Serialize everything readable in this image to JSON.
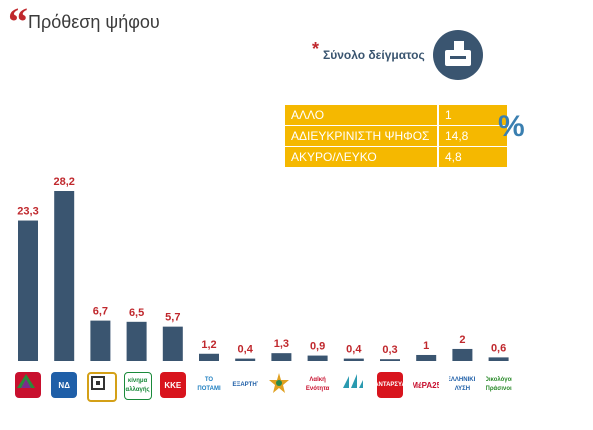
{
  "header": {
    "quote": "“",
    "title": "Πρόθεση ψήφου"
  },
  "sample": {
    "asterisk": "*",
    "label": "Σύνολο δείγματος",
    "icon": "ballot-box-icon"
  },
  "other_table": {
    "rows": [
      {
        "label": "ΑΛΛΟ",
        "value": "1"
      },
      {
        "label": "ΑΔΙΕΥΚΡΙΝΙΣΤΗ ΨΗΦΟΣ",
        "value": "14,8"
      },
      {
        "label": "ΑΚΥΡΟ/ΛΕΥΚΟ",
        "value": "4,8"
      }
    ],
    "unit": "%",
    "color": "#f5b800"
  },
  "chart_data": {
    "type": "bar",
    "categories": [
      "ΣΥΡΙΖΑ",
      "ΝΔ",
      "Χρυσή Αυγή",
      "Κίνημα Αλλαγής",
      "ΚΚΕ",
      "Το Ποτάμι",
      "Ανεξάρτητοι Έλληνες",
      "Ένωση Κεντρώων",
      "Λαϊκή Ενότητα",
      "Πλεύση Ελευθερίας",
      "ΑΝΤΑΡΣΥΑ",
      "ΜέΡΑ25",
      "Ελληνική Λύση",
      "Οικολόγοι Πράσινοι"
    ],
    "values": [
      23.3,
      28.2,
      6.7,
      6.5,
      5.7,
      1.2,
      0.4,
      1.3,
      0.9,
      0.4,
      0.3,
      1,
      2,
      0.6
    ],
    "labels": [
      "23,3",
      "28,2",
      "6,7",
      "6,5",
      "5,7",
      "1,2",
      "0,4",
      "1,3",
      "0,9",
      "0,4",
      "0,3",
      "1",
      "2",
      "0,6"
    ],
    "ylim": [
      0,
      30
    ],
    "grid": false,
    "bar_color": "#3a5570",
    "label_color": "#c0282d",
    "logo_texts": [
      "",
      "ΝΔ",
      "",
      "κίνημα αλλαγής",
      "ΚΚΕ",
      "ΤΟ ΠΟΤΑΜΙ",
      "ΑΝΕΞΑΡΤΗΤΟΙ",
      "",
      "Λαϊκή Ενότητα",
      "",
      "ΑΝΤΑΡΣΥΑ",
      "ΜέΡΑ25",
      "ΕΛΛΗΝΙΚΗ ΛΥΣΗ",
      "Οικολόγοι Πράσινοι"
    ],
    "logo_icons": [
      "syriza-logo-icon",
      "nd-logo-icon",
      "golden-dawn-logo-icon",
      "kinal-logo-icon",
      "kke-logo-icon",
      "potami-logo-icon",
      "anel-logo-icon",
      "union-centrists-logo-icon",
      "laiki-enotita-logo-icon",
      "plefsi-logo-icon",
      "antarsya-logo-icon",
      "mera25-logo-icon",
      "elliniki-lysi-logo-icon",
      "green-logo-icon"
    ]
  }
}
